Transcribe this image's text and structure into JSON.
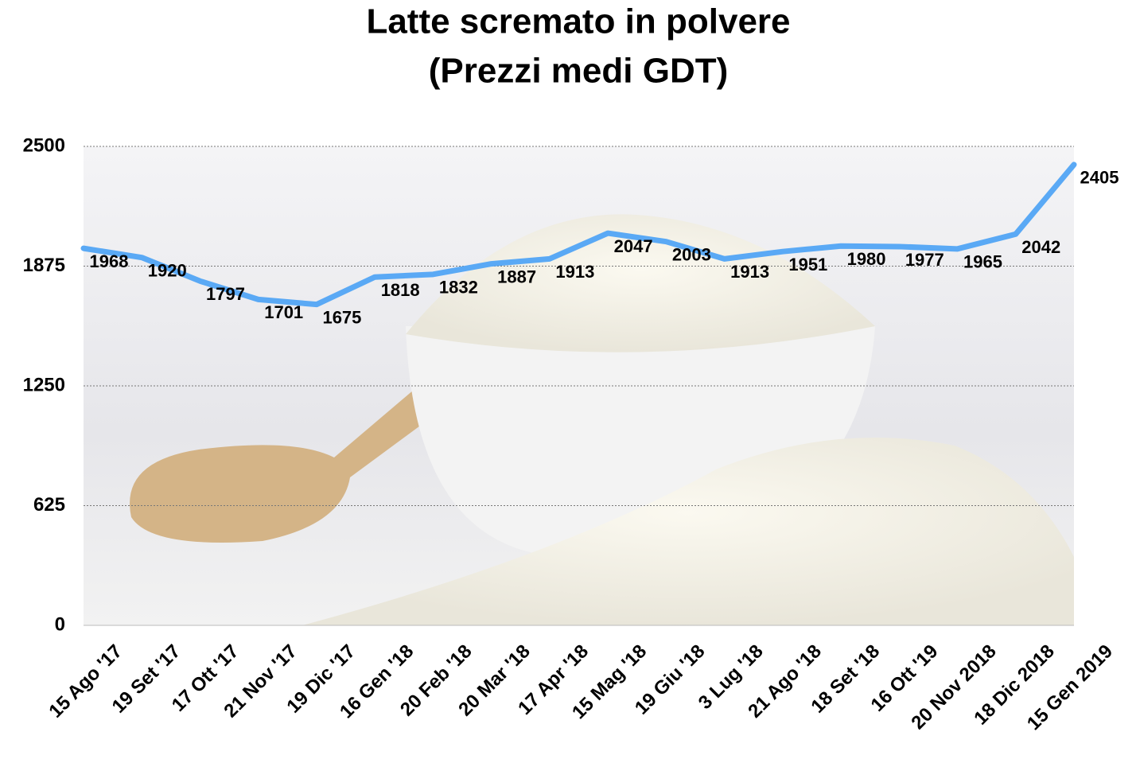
{
  "chart_data": {
    "type": "line",
    "title": "Latte scremato in polvere",
    "subtitle": "(Prezzi medi GDT)",
    "categories": [
      "15 Ago '17",
      "19 Set '17",
      "17 Ott '17",
      "21 Nov '17",
      "19 Dic '17",
      "16 Gen '18",
      "20 Feb '18",
      "20 Mar '18",
      "17 Apr '18",
      "15 Mag '18",
      "19 Giu '18",
      "3 Lug '18",
      "21 Ago '18",
      "18 Set '18",
      "16 Ott '19",
      "20 Nov 2018",
      "18 Dic 2018",
      "15 Gen 2019"
    ],
    "values": [
      1968,
      1920,
      1797,
      1701,
      1675,
      1818,
      1832,
      1887,
      1913,
      2047,
      2003,
      1913,
      1951,
      1980,
      1977,
      1965,
      2042,
      2405
    ],
    "color": "#5aa9f5",
    "ylim": [
      0,
      2500
    ],
    "yticks": [
      0,
      625,
      1250,
      1875,
      2500
    ],
    "grid": true
  }
}
